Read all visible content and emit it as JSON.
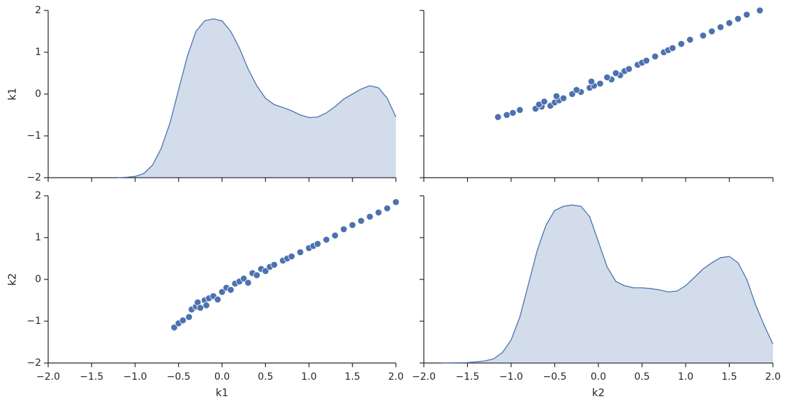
{
  "chart_data": [
    {
      "type": "area",
      "color": "#4c72b0",
      "ylabel": "k1",
      "xticklabels": false,
      "yticklabels": true,
      "xlim": [
        -2,
        2
      ],
      "ylim": [
        -2,
        2
      ],
      "xticks": [
        -2,
        -1.5,
        -1,
        -0.5,
        0,
        0.5,
        1,
        1.5,
        2
      ],
      "yticks": [
        {
          "value": -2,
          "label": "−2"
        },
        {
          "value": -1,
          "label": "−1"
        },
        0,
        1,
        2
      ],
      "x": [
        -1.2,
        -1.1,
        -1.0,
        -0.9,
        -0.8,
        -0.7,
        -0.6,
        -0.5,
        -0.4,
        -0.3,
        -0.2,
        -0.1,
        0.0,
        0.1,
        0.2,
        0.3,
        0.4,
        0.5,
        0.6,
        0.7,
        0.8,
        0.9,
        1.0,
        1.1,
        1.2,
        1.3,
        1.4,
        1.5,
        1.6,
        1.7,
        1.8,
        1.9,
        2.0
      ],
      "values": [
        -2,
        -1.99,
        -1.97,
        -1.9,
        -1.7,
        -1.3,
        -0.7,
        0.1,
        0.9,
        1.5,
        1.75,
        1.8,
        1.75,
        1.5,
        1.1,
        0.6,
        0.2,
        -0.1,
        -0.25,
        -0.32,
        -0.4,
        -0.5,
        -0.56,
        -0.55,
        -0.45,
        -0.3,
        -0.12,
        0.0,
        0.12,
        0.2,
        0.15,
        -0.1,
        -0.55
      ]
    },
    {
      "type": "scatter",
      "color": "#4c72b0",
      "xticklabels": false,
      "yticklabels": false,
      "xlim": [
        -2,
        2
      ],
      "ylim": [
        -2,
        2
      ],
      "xticks": [
        -2,
        -1.5,
        -1,
        -0.5,
        0,
        0.5,
        1,
        1.5,
        2
      ],
      "yticks": [
        -2,
        -1,
        0,
        1,
        2
      ],
      "x": [
        -1.15,
        -1.05,
        -0.98,
        -0.9,
        -0.72,
        -0.65,
        -0.55,
        -0.68,
        -0.5,
        -0.62,
        -0.45,
        -0.4,
        -0.48,
        -0.3,
        -0.2,
        -0.25,
        -0.1,
        -0.05,
        0.02,
        -0.08,
        0.15,
        0.1,
        0.25,
        0.2,
        0.3,
        0.35,
        0.45,
        0.5,
        0.55,
        0.65,
        0.75,
        0.8,
        0.85,
        0.95,
        1.05,
        1.2,
        1.3,
        1.4,
        1.5,
        1.6,
        1.7,
        1.85
      ],
      "values": [
        -0.55,
        -0.5,
        -0.45,
        -0.38,
        -0.35,
        -0.3,
        -0.28,
        -0.25,
        -0.2,
        -0.18,
        -0.15,
        -0.1,
        -0.05,
        0,
        0.05,
        0.1,
        0.15,
        0.2,
        0.25,
        0.3,
        0.35,
        0.4,
        0.45,
        0.5,
        0.55,
        0.6,
        0.7,
        0.75,
        0.8,
        0.9,
        1.0,
        1.05,
        1.1,
        1.2,
        1.3,
        1.4,
        1.5,
        1.6,
        1.7,
        1.8,
        1.9,
        2.0
      ]
    },
    {
      "type": "scatter",
      "color": "#4c72b0",
      "xlabel": "k1",
      "ylabel": "k2",
      "xticklabels": true,
      "yticklabels": true,
      "xlim": [
        -2,
        2
      ],
      "ylim": [
        -2,
        2
      ],
      "xticks": [
        {
          "value": -2,
          "label": "−2.0"
        },
        {
          "value": -1.5,
          "label": "−1.5"
        },
        {
          "value": -1,
          "label": "−1.0"
        },
        {
          "value": -0.5,
          "label": "−0.5"
        },
        {
          "value": 0,
          "label": "0.0"
        },
        0.5,
        {
          "value": 1,
          "label": "1.0"
        },
        1.5,
        {
          "value": 2,
          "label": "2.0"
        }
      ],
      "yticks": [
        {
          "value": -2,
          "label": "−2"
        },
        {
          "value": -1,
          "label": "−1"
        },
        0,
        1,
        2
      ],
      "x": [
        -0.55,
        -0.5,
        -0.45,
        -0.38,
        -0.35,
        -0.3,
        -0.28,
        -0.25,
        -0.2,
        -0.18,
        -0.15,
        -0.1,
        -0.05,
        0,
        0.05,
        0.1,
        0.15,
        0.2,
        0.25,
        0.3,
        0.35,
        0.4,
        0.45,
        0.5,
        0.55,
        0.6,
        0.7,
        0.75,
        0.8,
        0.9,
        1.0,
        1.05,
        1.1,
        1.2,
        1.3,
        1.4,
        1.5,
        1.6,
        1.7,
        1.8,
        1.9,
        2.0
      ],
      "values": [
        -1.15,
        -1.05,
        -0.98,
        -0.9,
        -0.72,
        -0.65,
        -0.55,
        -0.68,
        -0.5,
        -0.62,
        -0.45,
        -0.4,
        -0.48,
        -0.3,
        -0.2,
        -0.25,
        -0.1,
        -0.05,
        0.02,
        -0.08,
        0.15,
        0.1,
        0.25,
        0.2,
        0.3,
        0.35,
        0.45,
        0.5,
        0.55,
        0.65,
        0.75,
        0.8,
        0.85,
        0.95,
        1.05,
        1.2,
        1.3,
        1.4,
        1.5,
        1.6,
        1.7,
        1.85
      ]
    },
    {
      "type": "area",
      "color": "#4c72b0",
      "xlabel": "k2",
      "xticklabels": true,
      "yticklabels": false,
      "xlim": [
        -2,
        2
      ],
      "ylim": [
        -2,
        2
      ],
      "xticks": [
        {
          "value": -2,
          "label": "−2.0"
        },
        {
          "value": -1.5,
          "label": "−1.5"
        },
        {
          "value": -1,
          "label": "−1.0"
        },
        {
          "value": -0.5,
          "label": "−0.5"
        },
        {
          "value": 0,
          "label": "0.0"
        },
        0.5,
        {
          "value": 1,
          "label": "1.0"
        },
        1.5,
        {
          "value": 2,
          "label": "2.0"
        }
      ],
      "yticks": [
        -2,
        -1,
        0,
        1,
        2
      ],
      "x": [
        -1.8,
        -1.5,
        -1.3,
        -1.2,
        -1.1,
        -1.0,
        -0.9,
        -0.8,
        -0.7,
        -0.6,
        -0.5,
        -0.4,
        -0.3,
        -0.2,
        -0.1,
        0.0,
        0.1,
        0.2,
        0.3,
        0.4,
        0.5,
        0.6,
        0.7,
        0.8,
        0.9,
        1.0,
        1.1,
        1.2,
        1.3,
        1.4,
        1.5,
        1.6,
        1.7,
        1.8,
        1.9,
        2.0
      ],
      "values": [
        -2,
        -1.99,
        -1.95,
        -1.9,
        -1.75,
        -1.45,
        -0.9,
        -0.1,
        0.7,
        1.3,
        1.65,
        1.75,
        1.78,
        1.75,
        1.5,
        0.9,
        0.3,
        -0.05,
        -0.15,
        -0.2,
        -0.2,
        -0.22,
        -0.25,
        -0.3,
        -0.28,
        -0.15,
        0.05,
        0.25,
        0.4,
        0.52,
        0.55,
        0.4,
        0.0,
        -0.6,
        -1.1,
        -1.55
      ]
    }
  ]
}
